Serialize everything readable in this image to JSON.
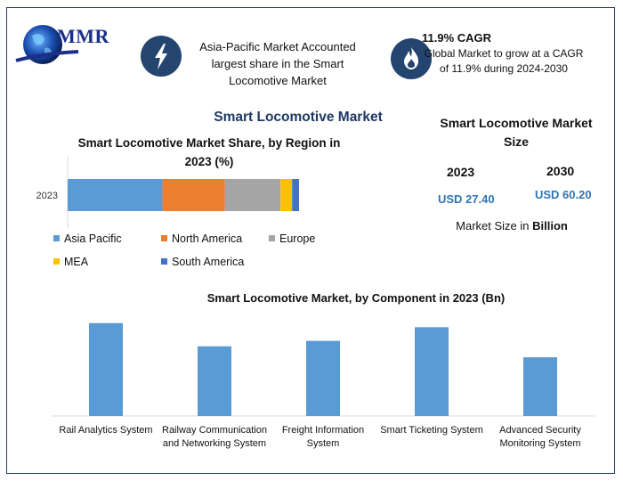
{
  "brand": {
    "name": "MMR"
  },
  "highlights": {
    "region_note": "Asia-Pacific Market Accounted largest share in the Smart Locomotive Market",
    "cagr_title": "11.9% CAGR",
    "cagr_body": "Global Market to grow at a CAGR of 11.9% during 2024-2030"
  },
  "main_title": "Smart Locomotive Market",
  "market_size": {
    "title": "Smart Locomotive Market Size",
    "year_a": "2023",
    "value_a": "USD 27.40",
    "year_b": "2030",
    "value_b": "USD 60.20",
    "unit_prefix": "Market Size in ",
    "unit_bold": "Billion"
  },
  "chart_data": [
    {
      "type": "bar",
      "orientation": "horizontal-stacked",
      "title": "Smart Locomotive Market Share, by Region in 2023 (%)",
      "categories": [
        "2023"
      ],
      "series": [
        {
          "name": "Asia Pacific",
          "values": [
            41
          ],
          "color": "#5b9bd5"
        },
        {
          "name": "North America",
          "values": [
            27
          ],
          "color": "#ed7d31"
        },
        {
          "name": "Europe",
          "values": [
            24
          ],
          "color": "#a5a5a5"
        },
        {
          "name": "MEA",
          "values": [
            5
          ],
          "color": "#ffc000"
        },
        {
          "name": "South America",
          "values": [
            3
          ],
          "color": "#4472c4"
        }
      ],
      "legend": "bottom",
      "grid": false
    },
    {
      "type": "bar",
      "title": "Smart Locomotive Market, by Component in 2023 (Bn)",
      "categories": [
        "Rail Analytics System",
        "Railway Communication and Networking System",
        "Freight Information System",
        "Smart Ticketing System",
        "Advanced Security Monitoring System"
      ],
      "values": [
        6.8,
        5.1,
        5.5,
        6.5,
        4.3
      ],
      "color": "#5b9bd5",
      "ylim": [
        0,
        7.5
      ],
      "grid": false
    }
  ]
}
